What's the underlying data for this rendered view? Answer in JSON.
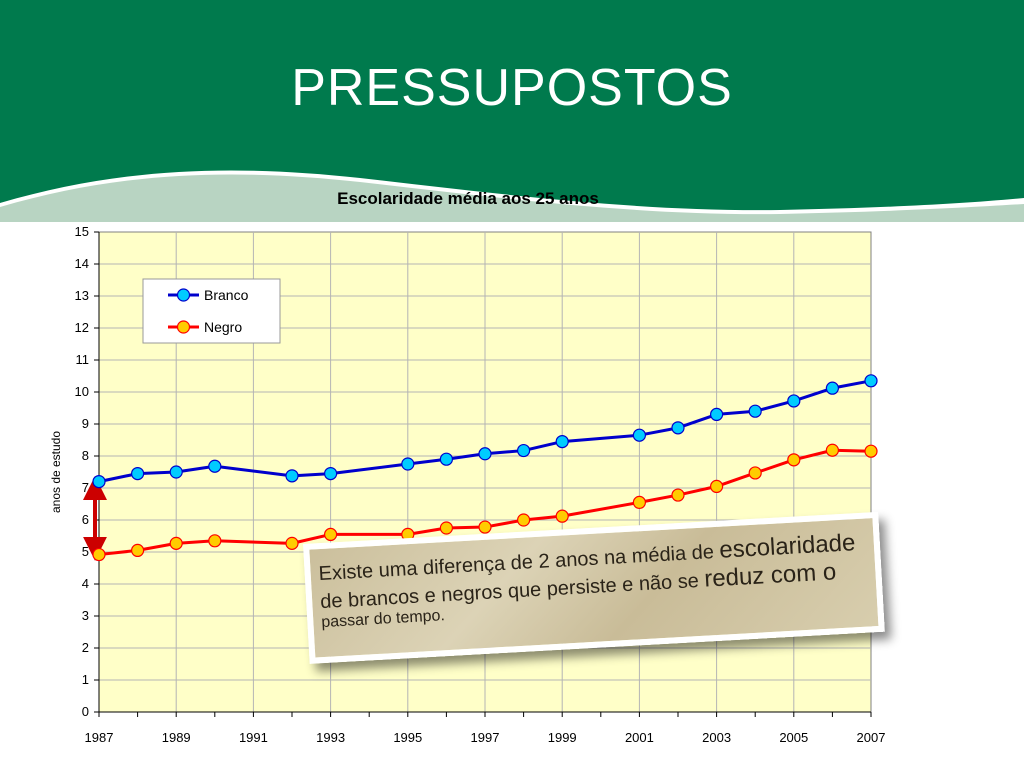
{
  "slide": {
    "title": "PRESSUPOSTOS",
    "header_color": "#007a4d",
    "header_line_color": "#b8d4c2"
  },
  "callout": {
    "line1_a": "Existe uma diferença de 2 anos na média de",
    "line1_b": "escolaridade",
    "line2_a": "de brancos e negros que persiste e não se",
    "line2_b": "reduz com o",
    "line3": "passar do tempo."
  },
  "chart_data": {
    "type": "line",
    "title": "Escolaridade média aos 25 anos",
    "ylabel": "anos de estudo",
    "xlabel": "",
    "xlim": [
      1987,
      2007
    ],
    "ylim": [
      0,
      15
    ],
    "x_ticks": [
      "1987",
      "1989",
      "1991",
      "1993",
      "1995",
      "1997",
      "1999",
      "2001",
      "2003",
      "2005",
      "2007"
    ],
    "y_ticks": [
      "0",
      "1",
      "2",
      "3",
      "4",
      "5",
      "6",
      "7",
      "8",
      "9",
      "10",
      "11",
      "12",
      "13",
      "14",
      "15"
    ],
    "grid": true,
    "plot_background": "#ffffc8",
    "legend": "top-left",
    "series": [
      {
        "name": "Branco",
        "color": "#0000cc",
        "marker_color": "#00ccff",
        "x": [
          1987,
          1988,
          1989,
          1990,
          1992,
          1993,
          1995,
          1996,
          1997,
          1998,
          1999,
          2001,
          2002,
          2003,
          2004,
          2005,
          2006,
          2007
        ],
        "y": [
          7.2,
          7.45,
          7.5,
          7.68,
          7.38,
          7.45,
          7.75,
          7.9,
          8.07,
          8.17,
          8.45,
          8.65,
          8.88,
          9.3,
          9.4,
          9.72,
          10.12,
          10.35
        ]
      },
      {
        "name": "Negro",
        "color": "#ff0000",
        "marker_color": "#ffcc00",
        "x": [
          1987,
          1988,
          1989,
          1990,
          1992,
          1993,
          1995,
          1996,
          1997,
          1998,
          1999,
          2001,
          2002,
          2003,
          2004,
          2005,
          2006,
          2007
        ],
        "y": [
          4.92,
          5.05,
          5.27,
          5.35,
          5.27,
          5.55,
          5.55,
          5.75,
          5.78,
          6.0,
          6.12,
          6.55,
          6.78,
          7.05,
          7.47,
          7.88,
          8.18,
          8.15
        ]
      }
    ],
    "annotation": {
      "type": "double-arrow",
      "x": 1987,
      "y_from": 5.1,
      "y_to": 7.0,
      "color": "#cc0000"
    }
  }
}
